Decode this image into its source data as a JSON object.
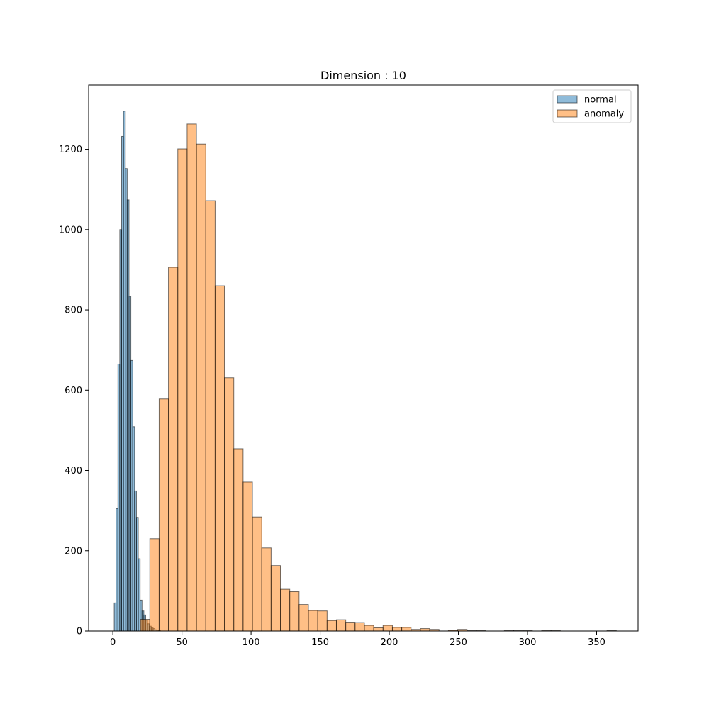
{
  "chart_data": {
    "type": "bar",
    "title": "Dimension : 10",
    "xlabel": "",
    "ylabel": "",
    "xlim": [
      -17.5,
      380
    ],
    "ylim": [
      0,
      1360
    ],
    "x_ticks": [
      0,
      50,
      100,
      150,
      200,
      250,
      300,
      350
    ],
    "y_ticks": [
      0,
      200,
      400,
      600,
      800,
      1000,
      1200
    ],
    "legend_position": "top-right",
    "grid": false,
    "series": [
      {
        "name": "normal",
        "color": "#1f77b4",
        "bin_edges": [
          1.0,
          2.34,
          3.68,
          5.02,
          6.36,
          7.7,
          9.04,
          10.38,
          11.72,
          13.06,
          14.4,
          15.74,
          17.08,
          18.42,
          19.76,
          21.1,
          22.44,
          23.78,
          25.12,
          26.46,
          27.8,
          29.14,
          30.48,
          31.82,
          33.16,
          34.5
        ],
        "counts": [
          70,
          305,
          665,
          1000,
          1232,
          1295,
          1152,
          1074,
          834,
          674,
          509,
          349,
          283,
          180,
          77,
          50,
          40,
          27,
          18,
          12,
          9,
          6,
          3,
          2,
          1
        ]
      },
      {
        "name": "anomaly",
        "color": "#ff7f0e",
        "bin_edges": [
          20.0,
          26.75,
          33.5,
          40.25,
          47.0,
          53.75,
          60.5,
          67.25,
          74.0,
          80.75,
          87.5,
          94.25,
          101.0,
          107.75,
          114.5,
          121.25,
          128.0,
          134.75,
          141.5,
          148.25,
          155.0,
          161.75,
          168.5,
          175.25,
          182.0,
          188.75,
          195.5,
          202.25,
          209.0,
          215.75,
          222.5,
          229.25,
          236.0,
          242.75,
          249.5,
          256.25,
          263.0,
          269.75,
          276.5,
          283.25,
          290.0,
          296.75,
          303.5,
          310.25,
          317.0,
          323.75,
          330.5,
          337.25,
          344.0,
          350.75,
          357.5,
          364.25
        ],
        "counts": [
          29,
          230,
          578,
          906,
          1201,
          1263,
          1213,
          1072,
          860,
          631,
          454,
          371,
          284,
          207,
          163,
          104,
          98,
          66,
          51,
          50,
          26,
          28,
          22,
          21,
          14,
          8,
          14,
          9,
          9,
          4,
          6,
          4,
          0,
          2,
          4,
          1,
          1,
          0,
          0,
          1,
          1,
          1,
          0,
          1,
          1,
          0,
          0,
          0,
          0,
          0,
          1
        ]
      }
    ]
  }
}
